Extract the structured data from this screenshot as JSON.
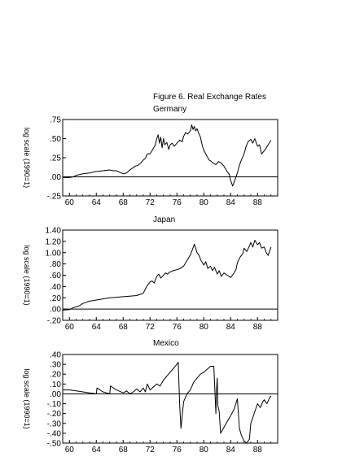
{
  "figure_title": "Figure 6. Real Exchange Rates",
  "chart_data": [
    {
      "type": "line",
      "title": "Germany",
      "ylabel": "log scale (1990=1)",
      "xlabel": "",
      "xlim": [
        1959,
        1991
      ],
      "ylim": [
        -0.25,
        0.75
      ],
      "x_ticks": [
        "60",
        "64",
        "68",
        "72",
        "76",
        "80",
        "84",
        "88"
      ],
      "x_tick_values": [
        1960,
        1964,
        1968,
        1972,
        1976,
        1980,
        1984,
        1988
      ],
      "y_ticks": [
        ".75",
        ".50",
        ".25",
        ".00",
        "-.25"
      ],
      "y_tick_values": [
        0.75,
        0.5,
        0.25,
        0.0,
        -0.25
      ],
      "zero_line": true,
      "series": [
        {
          "x": [
            1959.0,
            1960.0,
            1960.6,
            1961.0,
            1961.5,
            1962.0,
            1963.0,
            1964.0,
            1965.0,
            1966.0,
            1966.5,
            1967.0,
            1967.5,
            1968.0,
            1968.5,
            1969.0,
            1969.5,
            1969.8,
            1970.2,
            1970.6,
            1971.0,
            1971.3,
            1971.6,
            1972.0,
            1972.4,
            1972.8,
            1973.0,
            1973.2,
            1973.4,
            1973.6,
            1973.8,
            1974.0,
            1974.2,
            1974.5,
            1974.8,
            1975.0,
            1975.3,
            1975.6,
            1976.0,
            1976.4,
            1976.8,
            1977.0,
            1977.3,
            1977.6,
            1978.0,
            1978.2,
            1978.4,
            1978.6,
            1978.8,
            1979.0,
            1979.2,
            1979.5,
            1979.8,
            1980.0,
            1980.4,
            1980.8,
            1981.0,
            1981.4,
            1981.8,
            1982.2,
            1982.6,
            1983.0,
            1983.4,
            1983.8,
            1984.0,
            1984.3,
            1984.6,
            1985.0,
            1985.3,
            1985.6,
            1986.0,
            1986.3,
            1986.6,
            1987.0,
            1987.3,
            1987.6,
            1988.0,
            1988.3,
            1988.6,
            1989.0,
            1989.3,
            1989.6,
            1990.0
          ],
          "y": [
            -0.01,
            -0.01,
            0.0,
            0.02,
            0.03,
            0.04,
            0.05,
            0.07,
            0.08,
            0.09,
            0.08,
            0.08,
            0.06,
            0.04,
            0.05,
            0.09,
            0.12,
            0.14,
            0.15,
            0.18,
            0.22,
            0.24,
            0.3,
            0.3,
            0.36,
            0.42,
            0.5,
            0.55,
            0.44,
            0.52,
            0.38,
            0.5,
            0.42,
            0.45,
            0.36,
            0.42,
            0.44,
            0.4,
            0.44,
            0.48,
            0.46,
            0.53,
            0.58,
            0.56,
            0.6,
            0.68,
            0.62,
            0.66,
            0.6,
            0.63,
            0.58,
            0.52,
            0.4,
            0.35,
            0.28,
            0.22,
            0.21,
            0.18,
            0.16,
            0.2,
            0.18,
            0.14,
            0.08,
            0.03,
            -0.05,
            -0.12,
            -0.05,
            0.05,
            0.15,
            0.22,
            0.3,
            0.4,
            0.46,
            0.49,
            0.44,
            0.5,
            0.4,
            0.42,
            0.3,
            0.34,
            0.38,
            0.42,
            0.48
          ]
        }
      ]
    },
    {
      "type": "line",
      "title": "Japan",
      "ylabel": "log scale (1990=1)",
      "xlabel": "",
      "xlim": [
        1959,
        1991
      ],
      "ylim": [
        -0.2,
        1.4
      ],
      "x_ticks": [
        "60",
        "64",
        "68",
        "72",
        "76",
        "80",
        "84",
        "88"
      ],
      "x_tick_values": [
        1960,
        1964,
        1968,
        1972,
        1976,
        1980,
        1984,
        1988
      ],
      "y_ticks": [
        "1.40",
        "1.20",
        "1.00",
        ".80",
        ".60",
        ".40",
        ".20",
        ".00",
        "-.20"
      ],
      "y_tick_values": [
        1.4,
        1.2,
        1.0,
        0.8,
        0.6,
        0.4,
        0.2,
        0.0,
        -0.2
      ],
      "zero_line": true,
      "series": [
        {
          "x": [
            1959.0,
            1960.0,
            1960.5,
            1961.0,
            1961.5,
            1962.0,
            1962.5,
            1963.0,
            1963.5,
            1964.0,
            1965.0,
            1966.0,
            1967.0,
            1968.0,
            1969.0,
            1970.0,
            1970.5,
            1971.0,
            1971.5,
            1972.0,
            1972.3,
            1972.6,
            1973.0,
            1973.3,
            1973.6,
            1974.0,
            1974.3,
            1974.6,
            1975.0,
            1975.5,
            1976.0,
            1976.5,
            1977.0,
            1977.3,
            1977.6,
            1978.0,
            1978.3,
            1978.6,
            1979.0,
            1979.3,
            1979.6,
            1980.0,
            1980.3,
            1980.6,
            1981.0,
            1981.3,
            1981.6,
            1982.0,
            1982.3,
            1982.6,
            1983.0,
            1983.5,
            1984.0,
            1984.4,
            1984.8,
            1985.0,
            1985.4,
            1985.8,
            1986.0,
            1986.4,
            1986.8,
            1987.0,
            1987.3,
            1987.6,
            1988.0,
            1988.3,
            1988.6,
            1989.0,
            1989.3,
            1989.6,
            1990.0
          ],
          "y": [
            -0.02,
            -0.01,
            0.02,
            0.04,
            0.06,
            0.1,
            0.12,
            0.14,
            0.15,
            0.16,
            0.18,
            0.2,
            0.21,
            0.22,
            0.23,
            0.24,
            0.26,
            0.28,
            0.4,
            0.48,
            0.5,
            0.46,
            0.58,
            0.62,
            0.55,
            0.6,
            0.64,
            0.62,
            0.66,
            0.68,
            0.7,
            0.72,
            0.76,
            0.82,
            0.88,
            0.96,
            1.05,
            1.15,
            1.0,
            0.95,
            0.86,
            0.78,
            0.84,
            0.72,
            0.76,
            0.68,
            0.74,
            0.62,
            0.68,
            0.58,
            0.64,
            0.6,
            0.56,
            0.62,
            0.7,
            0.82,
            0.92,
            0.98,
            1.08,
            1.02,
            1.12,
            1.18,
            1.1,
            1.22,
            1.14,
            1.18,
            1.08,
            1.1,
            1.0,
            0.95,
            1.1
          ]
        }
      ]
    },
    {
      "type": "line",
      "title": "Mexico",
      "ylabel": "log scale (1990=1)",
      "xlabel": "",
      "xlim": [
        1959,
        1991
      ],
      "ylim": [
        -0.5,
        0.4
      ],
      "x_ticks": [
        "60",
        "64",
        "68",
        "72",
        "76",
        "80",
        "84",
        "88"
      ],
      "x_tick_values": [
        1960,
        1964,
        1968,
        1972,
        1976,
        1980,
        1984,
        1988
      ],
      "y_ticks": [
        ".40",
        ".30",
        ".20",
        ".10",
        ".00",
        "-.10",
        "-.20",
        "-.30",
        "-.40",
        "-.50"
      ],
      "y_tick_values": [
        0.4,
        0.3,
        0.2,
        0.1,
        0.0,
        -0.1,
        -0.2,
        -0.3,
        -0.4,
        -0.5
      ],
      "zero_line": true,
      "series": [
        {
          "x": [
            1959.0,
            1960.0,
            1961.0,
            1962.0,
            1963.0,
            1964.0,
            1964.1,
            1965.0,
            1966.0,
            1966.1,
            1967.0,
            1968.0,
            1968.5,
            1969.0,
            1969.5,
            1970.0,
            1970.5,
            1971.0,
            1971.3,
            1971.6,
            1972.0,
            1972.5,
            1973.0,
            1973.5,
            1974.0,
            1974.5,
            1975.0,
            1975.5,
            1976.0,
            1976.2,
            1976.4,
            1976.6,
            1977.0,
            1977.5,
            1978.0,
            1978.5,
            1979.0,
            1979.5,
            1980.0,
            1980.5,
            1981.0,
            1981.5,
            1981.8,
            1981.9,
            1982.0,
            1982.1,
            1982.3,
            1982.5,
            1983.0,
            1983.5,
            1984.0,
            1984.5,
            1985.0,
            1985.3,
            1985.6,
            1986.0,
            1986.4,
            1986.8,
            1987.0,
            1987.4,
            1987.8,
            1988.0,
            1988.4,
            1988.8,
            1989.0,
            1989.4,
            1989.8,
            1990.0
          ],
          "y": [
            0.04,
            0.04,
            0.03,
            0.02,
            0.01,
            0.0,
            0.06,
            0.02,
            0.0,
            0.08,
            0.04,
            0.01,
            0.03,
            0.0,
            0.02,
            0.05,
            0.02,
            0.06,
            0.02,
            0.1,
            0.04,
            0.07,
            0.1,
            0.08,
            0.14,
            0.18,
            0.22,
            0.26,
            0.3,
            0.32,
            -0.1,
            -0.35,
            -0.08,
            0.0,
            0.04,
            0.12,
            0.16,
            0.2,
            0.22,
            0.25,
            0.28,
            0.28,
            -0.2,
            0.04,
            0.16,
            -0.12,
            -0.18,
            -0.4,
            -0.34,
            -0.28,
            -0.22,
            -0.16,
            -0.05,
            -0.35,
            -0.42,
            -0.48,
            -0.5,
            -0.46,
            -0.3,
            -0.22,
            -0.14,
            -0.1,
            -0.14,
            -0.08,
            -0.06,
            -0.1,
            -0.04,
            -0.02
          ]
        }
      ]
    }
  ]
}
